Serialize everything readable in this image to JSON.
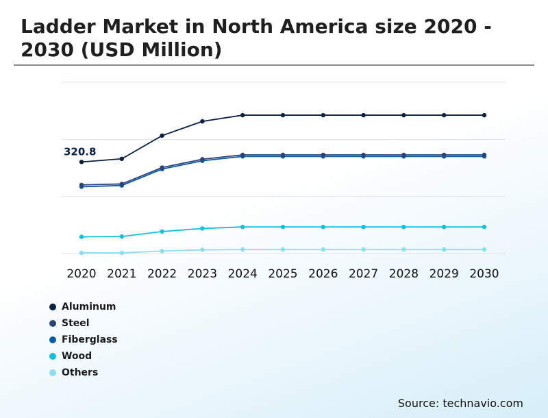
{
  "header": {
    "title": "Ladder Market in North America size 2020 - 2030 (USD Million)"
  },
  "source": "Source: technavio.com",
  "chart_data": {
    "type": "line",
    "title": "Ladder Market in North America size 2020 - 2030 (USD Million)",
    "xlabel": "",
    "ylabel": "",
    "x": [
      "2020",
      "2021",
      "2022",
      "2023",
      "2024",
      "2025",
      "2026",
      "2027",
      "2028",
      "2029",
      "2030"
    ],
    "ylim": [
      0,
      600
    ],
    "grid": true,
    "legend_position": "bottom-left",
    "annotations": [
      {
        "series": "Aluminum",
        "x": "2020",
        "text": "320.8"
      }
    ],
    "series": [
      {
        "name": "Aluminum",
        "color": "#0a1f44",
        "values": [
          320.8,
          331.7,
          413.0,
          462.9,
          484.6,
          484.6,
          484.6,
          484.6,
          484.6,
          484.6,
          484.6
        ]
      },
      {
        "name": "Steel",
        "color": "#2b4377",
        "values": [
          240.4,
          243.7,
          301.1,
          330.4,
          345.6,
          345.6,
          345.6,
          345.6,
          345.6,
          345.6,
          345.6
        ]
      },
      {
        "name": "Fiberglass",
        "color": "#0b5aa8",
        "values": [
          233.9,
          238.3,
          295.7,
          324.9,
          340.1,
          340.1,
          340.1,
          340.1,
          340.1,
          340.1,
          340.1
        ]
      },
      {
        "name": "Wood",
        "color": "#12bfdc",
        "values": [
          58.6,
          59.7,
          77.0,
          87.8,
          93.2,
          93.2,
          93.2,
          93.2,
          93.2,
          93.2,
          93.2
        ]
      },
      {
        "name": "Others",
        "color": "#8fdcee",
        "values": [
          2.2,
          2.2,
          8.7,
          13.0,
          14.1,
          14.1,
          14.1,
          14.1,
          14.1,
          14.1,
          14.1
        ]
      }
    ]
  }
}
